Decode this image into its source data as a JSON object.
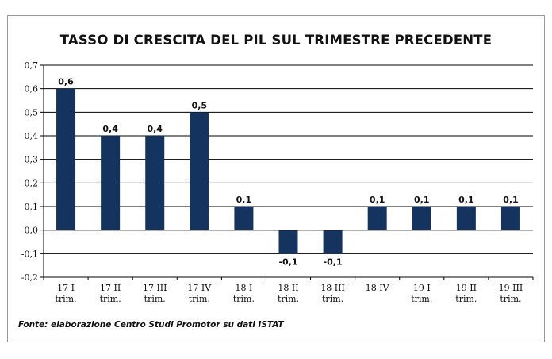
{
  "chart_data": {
    "type": "bar",
    "title": "TASSO DI CRESCITA DEL PIL SUL TRIMESTRE PRECEDENTE",
    "categories": [
      [
        "17 I",
        "trim."
      ],
      [
        "17 II",
        "trim."
      ],
      [
        "17 III",
        "trim."
      ],
      [
        "17 IV",
        "trim."
      ],
      [
        "18 I",
        "trim."
      ],
      [
        "18 II",
        "trim."
      ],
      [
        "18 III",
        "trim."
      ],
      [
        "18 IV"
      ],
      [
        "19 I",
        "trim."
      ],
      [
        "19 II",
        "trim."
      ],
      [
        "19 III",
        "trim."
      ]
    ],
    "values": [
      0.6,
      0.4,
      0.4,
      0.5,
      0.1,
      -0.1,
      -0.1,
      0.1,
      0.1,
      0.1,
      0.1
    ],
    "value_labels": [
      "0,6",
      "0,4",
      "0,4",
      "0,5",
      "0,1",
      "-0,1",
      "-0,1",
      "0,1",
      "0,1",
      "0,1",
      "0,1"
    ],
    "ylim": [
      -0.2,
      0.7
    ],
    "yticks": [
      0.7,
      0.6,
      0.5,
      0.4,
      0.3,
      0.2,
      0.1,
      0.0,
      -0.1,
      -0.2
    ],
    "ytick_labels": [
      "0,7",
      "0,6",
      "0,5",
      "0,4",
      "0,3",
      "0,2",
      "0,1",
      "0,0",
      "-0,1",
      "-0,2"
    ],
    "grid": true,
    "legend": "none",
    "bar_color": "#14335f"
  },
  "footer": {
    "source": "Fonte: elaborazione Centro Studi Promotor su dati ISTAT"
  }
}
